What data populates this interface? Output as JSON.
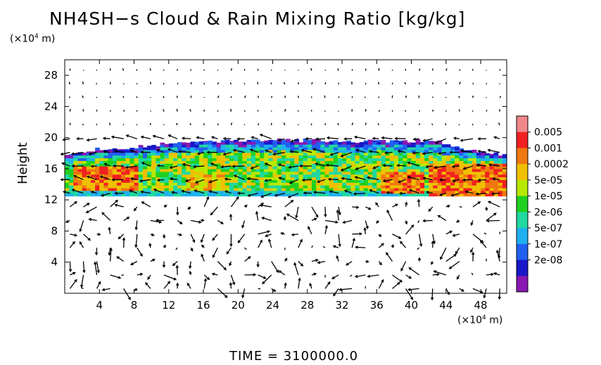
{
  "chart_data": {
    "type": "heatmap",
    "title": "NH4SH−s Cloud & Rain Mixing Ratio [kg/kg]",
    "ylabel": "Height",
    "x_unit_label": "(×10⁴ m)",
    "y_unit_label": "(×10⁴ m)",
    "footer": "TIME  =  3100000.0",
    "xlim": [
      0,
      51
    ],
    "ylim": [
      0,
      30
    ],
    "x_ticks": [
      "4",
      "8",
      "12",
      "16",
      "20",
      "24",
      "28",
      "32",
      "36",
      "40",
      "44",
      "48"
    ],
    "y_ticks": [
      "4",
      "8",
      "12",
      "16",
      "20",
      "24",
      "28"
    ],
    "colorbar": {
      "labels": [
        "0.005",
        "0.001",
        "0.0002",
        "5e-05",
        "1e-05",
        "2e-06",
        "5e-07",
        "1e-07",
        "2e-08"
      ],
      "colors": [
        "#f0888a",
        "#f02020",
        "#f07810",
        "#f0c000",
        "#b8e800",
        "#20d020",
        "#20d8a0",
        "#20b0f0",
        "#2060f0",
        "#1818c8",
        "#8818b0"
      ]
    },
    "layer": {
      "bottom_km": 12.5,
      "top_profile": [
        [
          0,
          18
        ],
        [
          4,
          18.5
        ],
        [
          8,
          18.8
        ],
        [
          12,
          19.2
        ],
        [
          16,
          19.5
        ],
        [
          20,
          19.6
        ],
        [
          24,
          19.7
        ],
        [
          28,
          19.6
        ],
        [
          32,
          19.5
        ],
        [
          36,
          19.6
        ],
        [
          40,
          19.6
        ],
        [
          43,
          19.7
        ],
        [
          45,
          18.7
        ],
        [
          48,
          18.2
        ],
        [
          51,
          17.8
        ]
      ],
      "cores": [
        {
          "x": [
            1,
            8
          ],
          "y": [
            13,
            16
          ],
          "level": "0.001"
        },
        {
          "x": [
            14,
            18
          ],
          "y": [
            13,
            15
          ],
          "level": "0.0002"
        },
        {
          "x": [
            36.5,
            41
          ],
          "y": [
            12.8,
            15.6
          ],
          "level": "0.001"
        },
        {
          "x": [
            42,
            51
          ],
          "y": [
            12.5,
            16.5
          ],
          "level": "0.001"
        }
      ]
    }
  }
}
